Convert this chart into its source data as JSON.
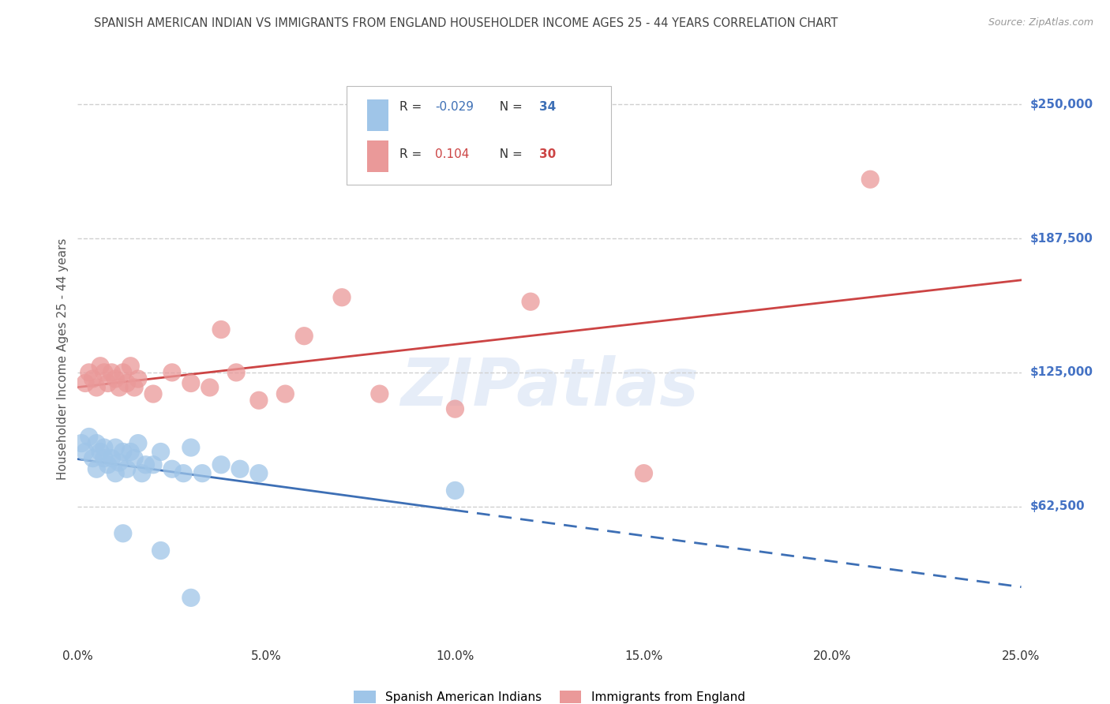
{
  "title": "SPANISH AMERICAN INDIAN VS IMMIGRANTS FROM ENGLAND HOUSEHOLDER INCOME AGES 25 - 44 YEARS CORRELATION CHART",
  "source": "Source: ZipAtlas.com",
  "xlabel_ticks": [
    "0.0%",
    "5.0%",
    "10.0%",
    "15.0%",
    "20.0%",
    "25.0%"
  ],
  "xlabel_vals": [
    0.0,
    0.05,
    0.1,
    0.15,
    0.2,
    0.25
  ],
  "ylabel_ticks": [
    "$62,500",
    "$125,000",
    "$187,500",
    "$250,000"
  ],
  "ylabel_vals": [
    62500,
    125000,
    187500,
    250000
  ],
  "xmin": 0.0,
  "xmax": 0.25,
  "ymin": 0,
  "ymax": 262500,
  "legend_label1": "Spanish American Indians",
  "legend_label2": "Immigrants from England",
  "R1": "-0.029",
  "N1": "34",
  "R2": "0.104",
  "N2": "30",
  "color1": "#9fc5e8",
  "color2": "#ea9999",
  "line_color1": "#3d6fb5",
  "line_color2": "#cc4444",
  "watermark": "ZIPatlas",
  "blue_points_x": [
    0.001,
    0.002,
    0.003,
    0.004,
    0.005,
    0.005,
    0.006,
    0.007,
    0.007,
    0.008,
    0.009,
    0.01,
    0.01,
    0.011,
    0.012,
    0.013,
    0.014,
    0.015,
    0.016,
    0.017,
    0.018,
    0.02,
    0.022,
    0.025,
    0.028,
    0.03,
    0.033,
    0.038,
    0.043,
    0.048,
    0.1,
    0.012,
    0.022,
    0.03
  ],
  "blue_points_y": [
    92000,
    88000,
    95000,
    85000,
    92000,
    80000,
    88000,
    85000,
    90000,
    82000,
    85000,
    90000,
    78000,
    83000,
    88000,
    80000,
    88000,
    85000,
    92000,
    78000,
    82000,
    82000,
    88000,
    80000,
    78000,
    90000,
    78000,
    82000,
    80000,
    78000,
    70000,
    50000,
    42000,
    20000
  ],
  "pink_points_x": [
    0.002,
    0.003,
    0.004,
    0.005,
    0.006,
    0.007,
    0.008,
    0.009,
    0.01,
    0.011,
    0.012,
    0.013,
    0.014,
    0.015,
    0.016,
    0.02,
    0.025,
    0.03,
    0.035,
    0.038,
    0.042,
    0.048,
    0.055,
    0.06,
    0.07,
    0.08,
    0.1,
    0.12,
    0.15,
    0.21
  ],
  "pink_points_y": [
    120000,
    125000,
    122000,
    118000,
    128000,
    125000,
    120000,
    125000,
    122000,
    118000,
    125000,
    120000,
    128000,
    118000,
    122000,
    115000,
    125000,
    120000,
    118000,
    145000,
    125000,
    112000,
    115000,
    142000,
    160000,
    115000,
    108000,
    158000,
    78000,
    215000
  ],
  "grid_color": "#d0d0d0",
  "bg_color": "#ffffff",
  "title_color": "#444444",
  "right_label_color": "#4472c4"
}
